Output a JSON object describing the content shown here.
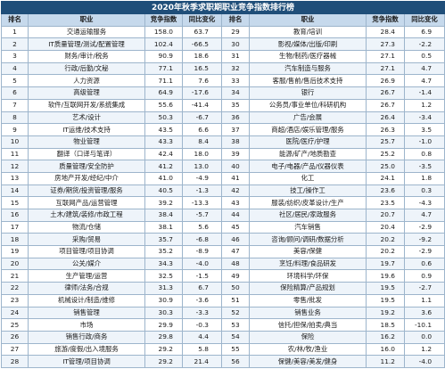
{
  "title": "2020年秋季求职期职业竞争指数排行榜",
  "headers": [
    "排名",
    "职业",
    "竞争指数",
    "同比变化",
    "排名",
    "职业",
    "竞争指数",
    "同比变化"
  ],
  "left": [
    {
      "rank": "1",
      "job": "交通运输服务",
      "index": "158.0",
      "change": "63.7"
    },
    {
      "rank": "2",
      "job": "IT质量管理/测试/配置管理",
      "index": "102.4",
      "change": "-66.5"
    },
    {
      "rank": "3",
      "job": "财务/审计/税务",
      "index": "90.9",
      "change": "18.6"
    },
    {
      "rank": "4",
      "job": "行政/后勤/文秘",
      "index": "77.1",
      "change": "16.5"
    },
    {
      "rank": "5",
      "job": "人力资源",
      "index": "71.1",
      "change": "7.6"
    },
    {
      "rank": "6",
      "job": "高级管理",
      "index": "64.9",
      "change": "-17.6"
    },
    {
      "rank": "7",
      "job": "软件/互联网开发/系统集成",
      "index": "55.6",
      "change": "-41.4"
    },
    {
      "rank": "8",
      "job": "艺术/设计",
      "index": "50.3",
      "change": "-6.7"
    },
    {
      "rank": "9",
      "job": "IT运维/技术支持",
      "index": "43.5",
      "change": "6.6"
    },
    {
      "rank": "10",
      "job": "物业管理",
      "index": "43.3",
      "change": "8.4"
    },
    {
      "rank": "11",
      "job": "翻译（口译与笔译）",
      "index": "42.4",
      "change": "18.0"
    },
    {
      "rank": "12",
      "job": "质量管理/安全防护",
      "index": "41.2",
      "change": "13.0"
    },
    {
      "rank": "13",
      "job": "房地产开发/经纪/中介",
      "index": "41.0",
      "change": "-4.9"
    },
    {
      "rank": "14",
      "job": "证券/期货/投资管理/服务",
      "index": "40.5",
      "change": "-1.3"
    },
    {
      "rank": "15",
      "job": "互联网产品/运营管理",
      "index": "39.2",
      "change": "-13.3"
    },
    {
      "rank": "16",
      "job": "土木/建筑/装修/市政工程",
      "index": "38.4",
      "change": "-5.7"
    },
    {
      "rank": "17",
      "job": "物流/仓储",
      "job2": "",
      "index": "38.1",
      "change": "5.6"
    },
    {
      "rank": "18",
      "job": "采购/贸易",
      "index": "35.7",
      "change": "-6.8"
    },
    {
      "rank": "19",
      "job": "项目管理/项目协调",
      "index": "35.2",
      "change": "-8.9"
    },
    {
      "rank": "20",
      "job": "公关/媒介",
      "index": "34.3",
      "change": "-4.0"
    },
    {
      "rank": "21",
      "job": "生产管理/运营",
      "index": "32.5",
      "change": "-1.5"
    },
    {
      "rank": "22",
      "job": "律师/法务/合规",
      "index": "31.3",
      "change": "6.7"
    },
    {
      "rank": "23",
      "job": "机械设计/制造/维修",
      "index": "30.9",
      "change": "-3.6"
    },
    {
      "rank": "24",
      "job": "销售管理",
      "index": "30.3",
      "change": "-3.3"
    },
    {
      "rank": "25",
      "job": "市场",
      "index": "29.9",
      "change": "-0.3"
    },
    {
      "rank": "26",
      "job": "销售行政/商务",
      "index": "29.8",
      "change": "4.4"
    },
    {
      "rank": "27",
      "job": "旅游/度假/出入境服务",
      "index": "29.2",
      "change": "5.8"
    },
    {
      "rank": "28",
      "job": "IT管理/项目协调",
      "index": "29.2",
      "change": "21.4"
    }
  ],
  "right": [
    {
      "rank": "29",
      "job": "教育/培训",
      "index": "28.4",
      "change": "6.9"
    },
    {
      "rank": "30",
      "job": "影视/媒体/出版/印刷",
      "index": "27.3",
      "change": "-2.2"
    },
    {
      "rank": "31",
      "job": "生物/制药/医疗器械",
      "index": "27.1",
      "change": "0.5"
    },
    {
      "rank": "32",
      "job": "汽车制造与服务",
      "index": "27.1",
      "change": "4.7"
    },
    {
      "rank": "33",
      "job": "客服/售前/售后技术支持",
      "index": "26.9",
      "change": "4.7"
    },
    {
      "rank": "34",
      "job": "银行",
      "index": "26.7",
      "change": "-1.4"
    },
    {
      "rank": "35",
      "job": "公务员/事业单位/科研机构",
      "index": "26.7",
      "change": "1.2"
    },
    {
      "rank": "36",
      "job": "广告/会展",
      "index": "26.4",
      "change": "-3.4"
    },
    {
      "rank": "37",
      "job": "商超/酒店/娱乐管理/服务",
      "index": "26.3",
      "change": "3.5"
    },
    {
      "rank": "38",
      "job": "医院/医疗/护理",
      "index": "25.7",
      "change": "-1.0"
    },
    {
      "rank": "39",
      "job": "能源/矿产/地质勘查",
      "index": "25.2",
      "change": "0.8"
    },
    {
      "rank": "40",
      "job": "电子/电器/产品/仪器仪表",
      "index": "25.0",
      "change": "-3.5"
    },
    {
      "rank": "41",
      "job": "化工",
      "index": "24.1",
      "change": "1.8"
    },
    {
      "rank": "42",
      "job": "技工/操作工",
      "index": "23.6",
      "change": "0.3"
    },
    {
      "rank": "43",
      "job": "服装/纺织/皮革设计/生产",
      "index": "23.5",
      "change": "-4.3"
    },
    {
      "rank": "44",
      "job": "社区/居民/家政服务",
      "index": "20.7",
      "change": "4.7"
    },
    {
      "rank": "45",
      "job": "汽车销售",
      "index": "20.4",
      "change": "-2.9"
    },
    {
      "rank": "46",
      "job": "咨询/顾问/调研/数据分析",
      "index": "20.2",
      "change": "-9.2"
    },
    {
      "rank": "47",
      "job": "美容/保健",
      "index": "20.2",
      "change": "-2.9"
    },
    {
      "rank": "48",
      "job": "烹饪/料理/食品研发",
      "index": "19.7",
      "change": "0.6"
    },
    {
      "rank": "49",
      "job": "环境科学/环保",
      "index": "19.6",
      "change": "0.9"
    },
    {
      "rank": "50",
      "job": "保险精算/产品规划",
      "index": "19.5",
      "change": "-2.7"
    },
    {
      "rank": "51",
      "job": "零售/批发",
      "index": "19.5",
      "change": "1.1"
    },
    {
      "rank": "52",
      "job": "销售业务",
      "index": "19.2",
      "change": "3.6"
    },
    {
      "rank": "53",
      "job": "信托/担保/拍卖/典当",
      "index": "18.5",
      "change": "-10.1"
    },
    {
      "rank": "54",
      "job": "保险",
      "index": "16.2",
      "change": "0.0"
    },
    {
      "rank": "55",
      "job": "农/林/牧/渔业",
      "index": "16.0",
      "change": "1.2"
    },
    {
      "rank": "56",
      "job": "保健/美容/美发/健身",
      "index": "11.2",
      "change": "-4.0"
    }
  ]
}
